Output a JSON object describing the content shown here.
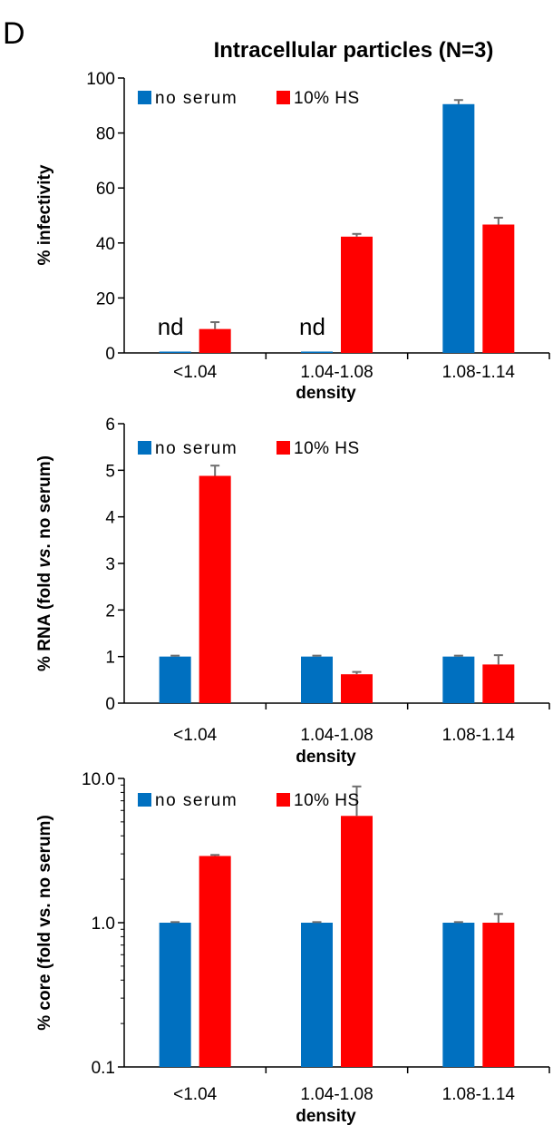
{
  "figure": {
    "panel_letter": "D",
    "title": "Intracellular particles (N=3)"
  },
  "colors": {
    "no_serum": "#0070c0",
    "hs": "#ff0000",
    "error_bar": "#6e6e6e",
    "axis": "#000000"
  },
  "chart_data": [
    {
      "type": "bar",
      "title": "Intracellular particles (N=3)",
      "xlabel": "density",
      "ylabel": "% infectivity",
      "categories": [
        "<1.04",
        "1.04-1.08",
        "1.08-1.14"
      ],
      "ylim": [
        0,
        100
      ],
      "yticks": [
        "0",
        "20",
        "40",
        "60",
        "80",
        "100"
      ],
      "scale": "linear",
      "legend_position": "top-left",
      "series": [
        {
          "name": "no serum",
          "values": [
            0,
            0.5,
            90.5
          ],
          "errors": [
            0,
            0,
            1.5
          ]
        },
        {
          "name": "10% HS",
          "values": [
            8.7,
            42.3,
            46.7
          ],
          "errors": [
            2.5,
            1.0,
            2.5
          ]
        }
      ],
      "annotations": [
        {
          "text": "nd",
          "category": "<1.04"
        },
        {
          "text": "nd",
          "category": "1.04-1.08"
        }
      ]
    },
    {
      "type": "bar",
      "xlabel": "density",
      "ylabel": "% RNA (fold vs. no serum)",
      "ylabel_parts": [
        "% RNA (fold ",
        "vs",
        ". no serum)"
      ],
      "categories": [
        "<1.04",
        "1.04-1.08",
        "1.08-1.14"
      ],
      "ylim": [
        0,
        6
      ],
      "yticks": [
        "0",
        "1",
        "2",
        "3",
        "4",
        "5",
        "6"
      ],
      "scale": "linear",
      "legend_position": "top-left",
      "series": [
        {
          "name": "no serum",
          "values": [
            1.0,
            1.0,
            1.0
          ],
          "errors": [
            0.02,
            0.02,
            0.02
          ]
        },
        {
          "name": "10% HS",
          "values": [
            4.88,
            0.62,
            0.83
          ],
          "errors": [
            0.22,
            0.05,
            0.2
          ]
        }
      ],
      "annotations": []
    },
    {
      "type": "bar",
      "xlabel": "density",
      "ylabel": "% core  (fold vs. no serum)",
      "categories": [
        "<1.04",
        "1.04-1.08",
        "1.08-1.14"
      ],
      "ylim": [
        0.1,
        10
      ],
      "yticks": [
        "0.1",
        "1.0",
        "10.0"
      ],
      "scale": "log",
      "legend_position": "top-left",
      "series": [
        {
          "name": "no serum",
          "values": [
            1.0,
            1.0,
            1.0
          ],
          "errors": [
            0.01,
            0.01,
            0.01
          ]
        },
        {
          "name": "10% HS",
          "values": [
            2.9,
            5.5,
            1.0
          ],
          "errors": [
            0.05,
            3.3,
            0.15
          ]
        }
      ],
      "annotations": []
    }
  ]
}
